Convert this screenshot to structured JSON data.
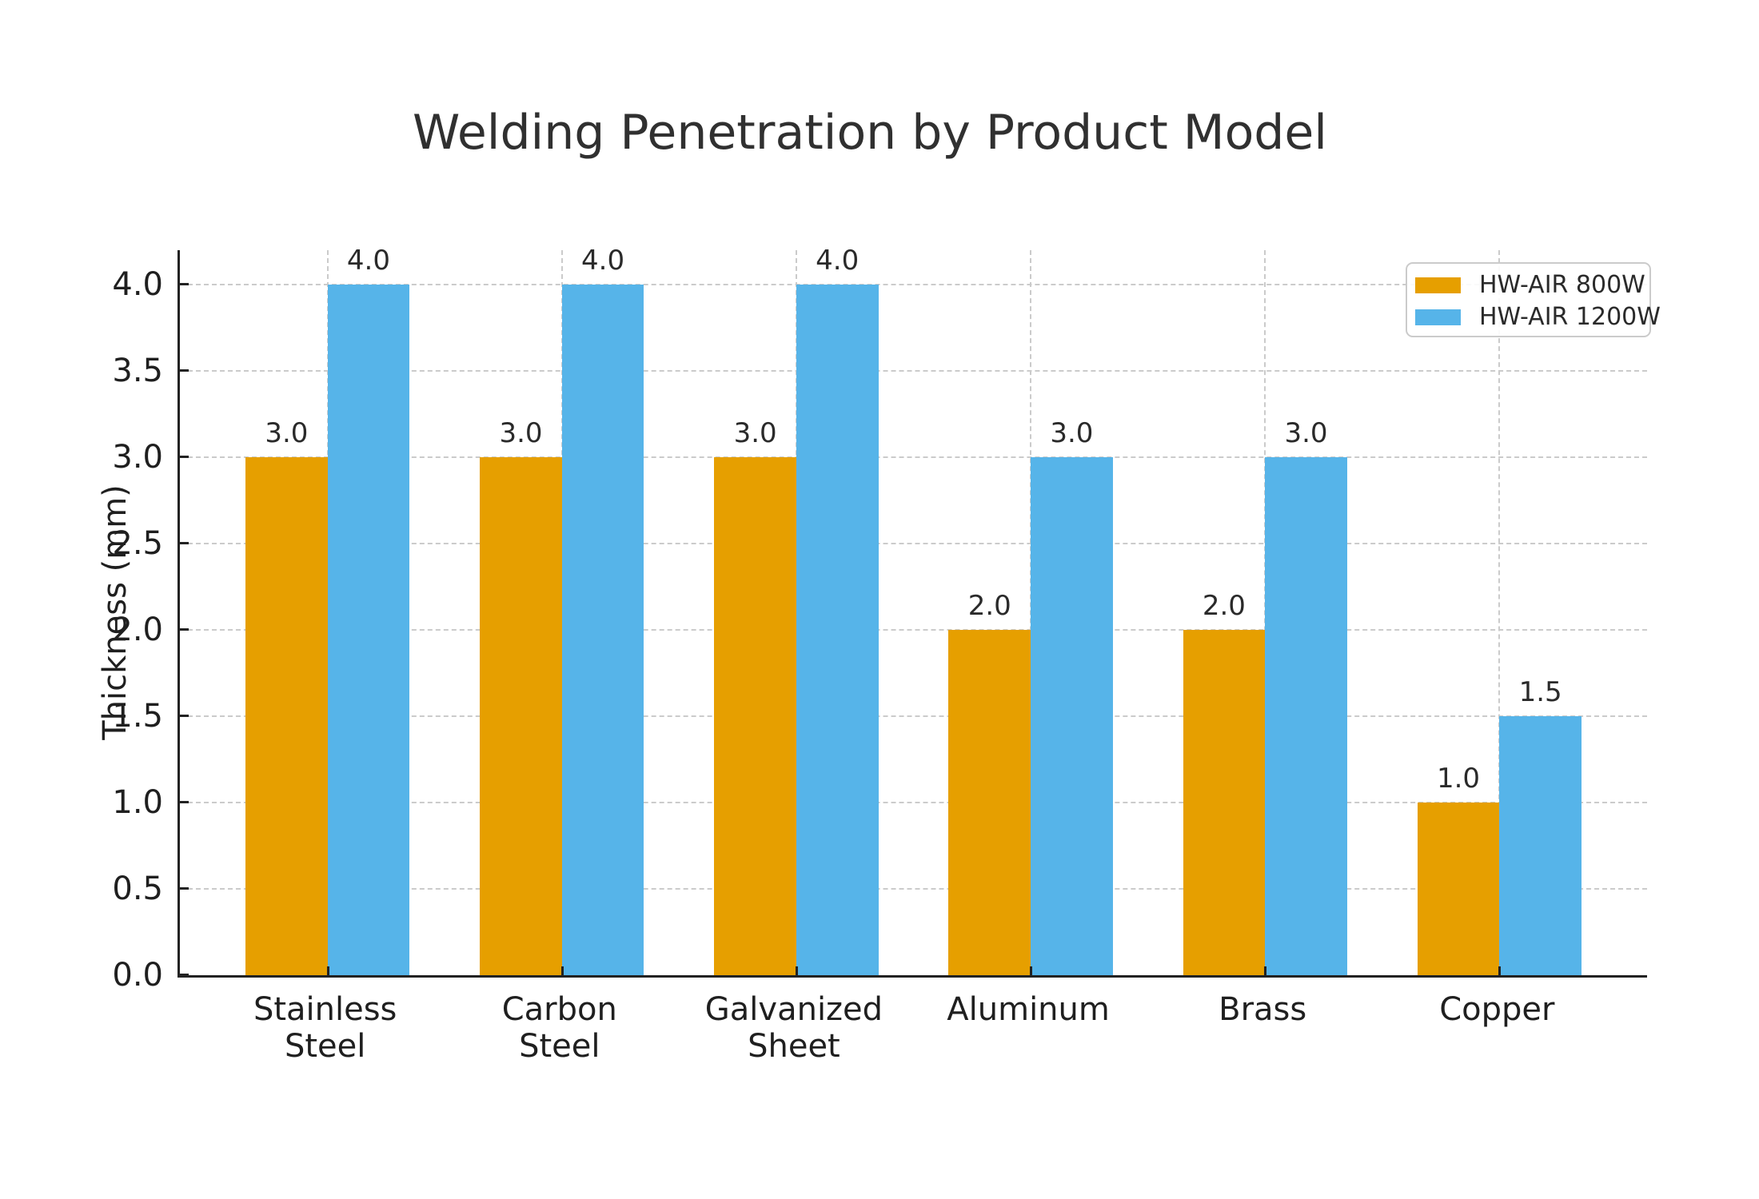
{
  "title": "Welding Penetration by Product Model",
  "chart_data": {
    "type": "bar",
    "title": "Welding Penetration by Product Model",
    "xlabel": "",
    "ylabel": "Thickness (mm)",
    "categories": [
      "Stainless\nSteel",
      "Carbon\nSteel",
      "Galvanized\nSheet",
      "Aluminum",
      "Brass",
      "Copper"
    ],
    "series": [
      {
        "name": "HW-AIR 800W",
        "color": "#E69F00",
        "values": [
          3.0,
          3.0,
          3.0,
          2.0,
          2.0,
          1.0
        ]
      },
      {
        "name": "HW-AIR 1200W",
        "color": "#56B4E9",
        "values": [
          4.0,
          4.0,
          4.0,
          3.0,
          3.0,
          1.5
        ]
      }
    ],
    "ylim": [
      0,
      4.2
    ],
    "yticks": [
      0.0,
      0.5,
      1.0,
      1.5,
      2.0,
      2.5,
      3.0,
      3.5,
      4.0
    ],
    "ytick_labels": [
      "0.0",
      "0.5",
      "1.0",
      "1.5",
      "2.0",
      "2.5",
      "3.0",
      "3.5",
      "4.0"
    ],
    "bar_value_labels": [
      "3.0",
      "4.0",
      "2.0",
      "1.0",
      "1.5"
    ],
    "grid": true,
    "grid_style": "dashed",
    "legend_position": "upper-right",
    "text_color": "#2a2a2a",
    "grid_color": "#cbcbcb",
    "axis_color": "#222222"
  }
}
